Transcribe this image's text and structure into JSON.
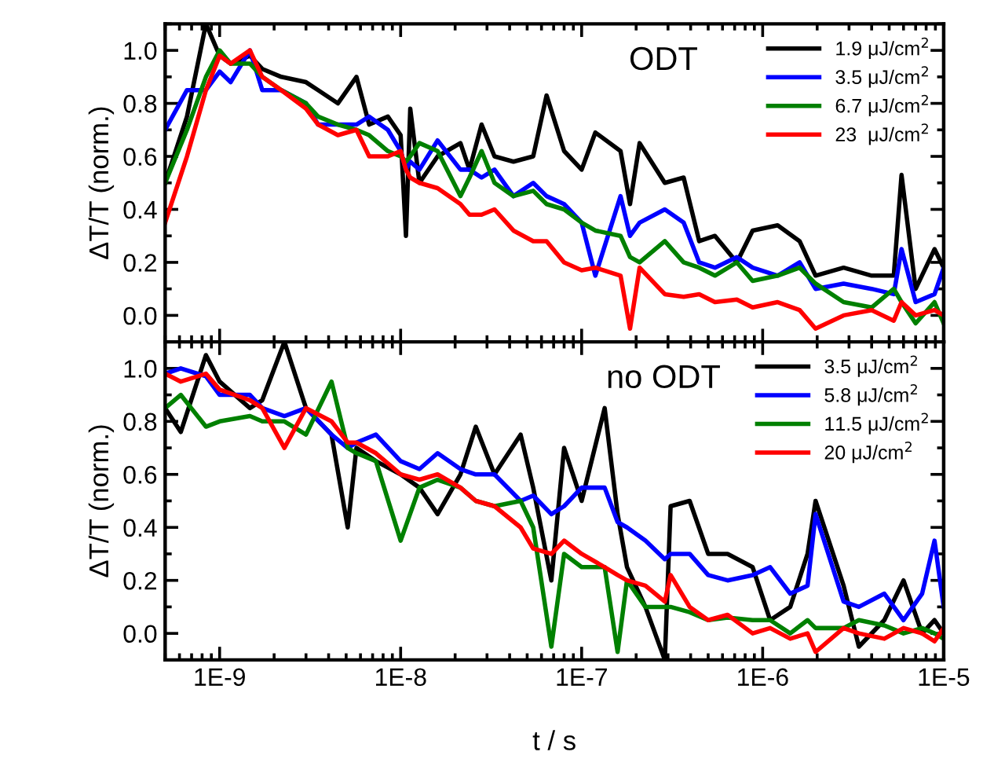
{
  "chart_data": [
    {
      "type": "line",
      "title": "ODT",
      "ylabel": "ΔT/T (norm.)",
      "log": "x",
      "legend": "top right",
      "tick_labels": "y",
      "xlim": [
        5e-10,
        1e-05
      ],
      "ylim": [
        -0.1,
        1.1
      ],
      "xticks": [
        {
          "value": 1e-09,
          "label": null
        },
        {
          "value": 1e-08,
          "label": null
        },
        {
          "value": 1e-07,
          "label": null
        },
        {
          "value": 1e-06,
          "label": null
        },
        {
          "value": 1e-05,
          "label": null
        }
      ],
      "yticks": [
        {
          "value": 0,
          "label": "0.0"
        },
        {
          "value": 0.2,
          "label": "0.2"
        },
        {
          "value": 0.4,
          "label": "0.4"
        },
        {
          "value": 0.6,
          "label": "0.6"
        },
        {
          "value": 0.8,
          "label": "0.8"
        },
        {
          "value": 1.0,
          "label": "1.0"
        }
      ],
      "x": [
        5e-10,
        6.6e-10,
        8.4e-10,
        1e-09,
        1.15e-09,
        1.47e-09,
        1.72e-09,
        2.19e-09,
        3e-09,
        3.5e-09,
        4.5e-09,
        5.7e-09,
        6.7e-09,
        8.5e-09,
        1e-08,
        1.07e-08,
        1.13e-08,
        1.27e-08,
        1.6e-08,
        2.14e-08,
        2.4e-08,
        2.8e-08,
        3.3e-08,
        4.2e-08,
        5.4e-08,
        6.4e-08,
        8e-08,
        1e-07,
        1.19e-07,
        1.64e-07,
        1.85e-07,
        2.09e-07,
        2.88e-07,
        3.66e-07,
        4.46e-07,
        5.45e-07,
        7.2e-07,
        8.8e-07,
        1.21e-06,
        1.6e-06,
        1.96e-06,
        2.8e-06,
        4e-06,
        5.3e-06,
        5.85e-06,
        7e-06,
        8.9e-06,
        1e-05
      ],
      "series": [
        {
          "name": "1.9 μJ/cm$^{2}$",
          "color": "#000000",
          "values": [
            0.5,
            0.75,
            1.1,
            0.98,
            0.95,
            0.98,
            0.93,
            0.9,
            0.88,
            0.85,
            0.8,
            0.9,
            0.72,
            0.75,
            0.68,
            0.3,
            0.78,
            0.5,
            0.6,
            0.65,
            0.55,
            0.72,
            0.6,
            0.58,
            0.6,
            0.83,
            0.62,
            0.55,
            0.69,
            0.62,
            0.42,
            0.65,
            0.5,
            0.52,
            0.28,
            0.3,
            0.2,
            0.32,
            0.34,
            0.28,
            0.15,
            0.18,
            0.15,
            0.15,
            0.53,
            0.1,
            0.25,
            0.18
          ]
        },
        {
          "name": "3.5 μJ/cm$^{2}$",
          "color": "#0000ff",
          "values": [
            0.7,
            0.85,
            0.85,
            0.92,
            0.88,
            1.0,
            0.85,
            0.85,
            0.8,
            0.72,
            0.72,
            0.72,
            0.75,
            0.7,
            0.62,
            0.55,
            0.58,
            0.55,
            0.66,
            0.55,
            0.55,
            0.52,
            0.55,
            0.45,
            0.5,
            0.45,
            0.42,
            0.35,
            0.15,
            0.45,
            0.3,
            0.35,
            0.4,
            0.35,
            0.2,
            0.18,
            0.22,
            0.18,
            0.15,
            0.2,
            0.1,
            0.12,
            0.1,
            0.08,
            0.25,
            0.05,
            0.08,
            0.18
          ]
        },
        {
          "name": "6.7 μJ/cm$^{2}$",
          "color": "#008000",
          "values": [
            0.5,
            0.7,
            0.9,
            1.0,
            0.95,
            0.95,
            0.9,
            0.85,
            0.8,
            0.75,
            0.72,
            0.7,
            0.68,
            0.62,
            0.6,
            0.58,
            0.6,
            0.65,
            0.62,
            0.45,
            0.52,
            0.62,
            0.5,
            0.45,
            0.47,
            0.42,
            0.4,
            0.35,
            0.32,
            0.3,
            0.22,
            0.2,
            0.28,
            0.2,
            0.18,
            0.15,
            0.2,
            0.13,
            0.15,
            0.18,
            0.12,
            0.05,
            0.03,
            0.1,
            0.05,
            -0.03,
            0.05,
            -0.03
          ]
        },
        {
          "name": "23  μJ/cm$^{2}$",
          "color": "#ff0000",
          "values": [
            0.35,
            0.6,
            0.85,
            0.98,
            0.95,
            1.0,
            0.9,
            0.85,
            0.78,
            0.72,
            0.68,
            0.7,
            0.6,
            0.6,
            0.62,
            0.55,
            0.52,
            0.5,
            0.48,
            0.42,
            0.38,
            0.38,
            0.4,
            0.32,
            0.28,
            0.28,
            0.2,
            0.17,
            0.18,
            0.15,
            -0.05,
            0.18,
            0.08,
            0.07,
            0.08,
            0.05,
            0.06,
            0.03,
            0.05,
            0.02,
            -0.05,
            0.0,
            0.02,
            -0.02,
            0.05,
            0.0,
            0.02,
            0.0
          ]
        }
      ]
    },
    {
      "type": "line",
      "title": "no ODT",
      "ylabel": "ΔT/T (norm.)",
      "xlabel": "t / s",
      "log": "x",
      "legend": "top right",
      "xlim": [
        5e-10,
        1e-05
      ],
      "ylim": [
        -0.1,
        1.1
      ],
      "xticks": [
        {
          "value": 1e-09,
          "label": "1E-9"
        },
        {
          "value": 1e-08,
          "label": "1E-8"
        },
        {
          "value": 1e-07,
          "label": "1E-7"
        },
        {
          "value": 1e-06,
          "label": "1E-6"
        },
        {
          "value": 1e-05,
          "label": "1E-5"
        }
      ],
      "yticks": [
        {
          "value": 0,
          "label": "0.0"
        },
        {
          "value": 0.2,
          "label": "0.2"
        },
        {
          "value": 0.4,
          "label": "0.4"
        },
        {
          "value": 0.6,
          "label": "0.6"
        },
        {
          "value": 0.8,
          "label": "0.8"
        },
        {
          "value": 1.0,
          "label": "1.0"
        }
      ],
      "x": [
        5e-10,
        6.1e-10,
        8.4e-10,
        1e-09,
        1.47e-09,
        1.72e-09,
        2.28e-09,
        3e-09,
        4.15e-09,
        5.1e-09,
        5.7e-09,
        7.3e-09,
        1e-08,
        1.27e-08,
        1.6e-08,
        2.14e-08,
        2.6e-08,
        3.3e-08,
        4.6e-08,
        5.4e-08,
        6.8e-08,
        8e-08,
        1e-07,
        1.34e-07,
        1.58e-07,
        1.78e-07,
        2.25e-07,
        2.88e-07,
        3.1e-07,
        3.95e-07,
        5e-07,
        6.4e-07,
        8.8e-07,
        1.1e-06,
        1.42e-06,
        1.77e-06,
        1.96e-06,
        2.8e-06,
        3.4e-06,
        4.7e-06,
        6e-06,
        7.6e-06,
        8.9e-06,
        1e-05
      ],
      "series": [
        {
          "name": "3.5 μJ/cm$^{2}$",
          "color": "#000000",
          "values": [
            0.85,
            0.76,
            1.05,
            0.95,
            0.85,
            0.88,
            1.1,
            0.85,
            0.75,
            0.4,
            0.7,
            0.65,
            0.6,
            0.55,
            0.45,
            0.6,
            0.78,
            0.6,
            0.75,
            0.55,
            0.2,
            0.7,
            0.5,
            0.85,
            0.45,
            0.25,
            0.1,
            -0.1,
            0.48,
            0.5,
            0.3,
            0.3,
            0.25,
            0.05,
            0.1,
            0.3,
            0.5,
            0.18,
            -0.05,
            0.05,
            0.2,
            0.0,
            0.05,
            0.0
          ]
        },
        {
          "name": "5.8 μJ/cm$^{2}$",
          "color": "#0000ff",
          "values": [
            0.98,
            1.0,
            0.97,
            0.9,
            0.9,
            0.85,
            0.82,
            0.85,
            0.75,
            0.7,
            0.72,
            0.75,
            0.65,
            0.62,
            0.68,
            0.62,
            0.6,
            0.6,
            0.5,
            0.52,
            0.45,
            0.48,
            0.55,
            0.55,
            0.42,
            0.4,
            0.35,
            0.28,
            0.3,
            0.3,
            0.22,
            0.2,
            0.22,
            0.25,
            0.15,
            0.18,
            0.45,
            0.12,
            0.1,
            0.15,
            0.05,
            0.15,
            0.35,
            0.1
          ]
        },
        {
          "name": "11.5 μJ/cm$^{2}$",
          "color": "#008000",
          "values": [
            0.85,
            0.9,
            0.78,
            0.8,
            0.82,
            0.8,
            0.8,
            0.75,
            0.95,
            0.7,
            0.68,
            0.65,
            0.35,
            0.55,
            0.58,
            0.55,
            0.5,
            0.48,
            0.5,
            0.4,
            -0.05,
            0.3,
            0.25,
            0.25,
            -0.07,
            0.2,
            0.1,
            0.1,
            0.1,
            0.08,
            0.05,
            0.06,
            0.05,
            0.05,
            0.0,
            0.05,
            0.02,
            0.02,
            0.05,
            0.03,
            0.0,
            0.02,
            0.0,
            -0.02
          ]
        },
        {
          "name": "20 μJ/cm$^{2}$",
          "color": "#ff0000",
          "values": [
            0.98,
            0.95,
            0.98,
            0.92,
            0.88,
            0.85,
            0.7,
            0.85,
            0.8,
            0.72,
            0.72,
            0.68,
            0.6,
            0.58,
            0.6,
            0.55,
            0.5,
            0.48,
            0.4,
            0.32,
            0.3,
            0.35,
            0.3,
            0.25,
            0.22,
            0.2,
            0.18,
            0.12,
            0.22,
            0.1,
            0.05,
            0.07,
            0.0,
            0.02,
            -0.02,
            0.0,
            -0.07,
            0.02,
            0.0,
            -0.02,
            0.02,
            0.0,
            -0.03,
            0.02
          ]
        }
      ]
    }
  ]
}
